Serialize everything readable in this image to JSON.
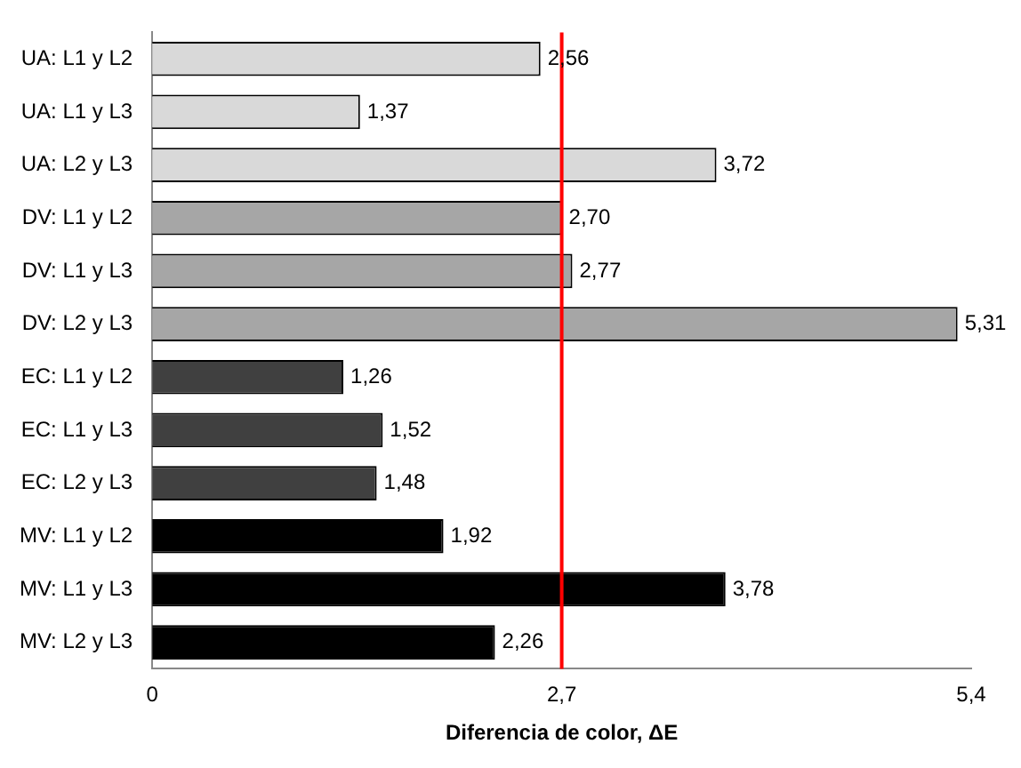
{
  "chart_data": {
    "type": "bar",
    "orientation": "horizontal",
    "xlabel": "Diferencia de color, ΔE",
    "categories": [
      "UA: L1 y L2",
      "UA: L1 y L3",
      "UA: L2 y L3",
      "DV: L1 y L2",
      "DV: L1 y L3",
      "DV: L2 y L3",
      "EC: L1 y L2",
      "EC: L1 y L3",
      "EC: L2 y L3",
      "MV: L1 y L2",
      "MV: L1 y L3",
      "MV: L2 y L3"
    ],
    "values": [
      2.56,
      1.37,
      3.72,
      2.7,
      2.77,
      5.31,
      1.26,
      1.52,
      1.48,
      1.92,
      3.78,
      2.26
    ],
    "value_labels": [
      "2,56",
      "1,37",
      "3,72",
      "2,70",
      "2,77",
      "5,31",
      "1,26",
      "1,52",
      "1,48",
      "1,92",
      "3,78",
      "2,26"
    ],
    "colors": [
      "#d9d9d9",
      "#d9d9d9",
      "#d9d9d9",
      "#a6a6a6",
      "#a6a6a6",
      "#a6a6a6",
      "#404040",
      "#404040",
      "#404040",
      "#000000",
      "#000000",
      "#000000"
    ],
    "xlim": [
      0,
      5.4
    ],
    "xticks": [
      0,
      {
        "value": 2.7,
        "label": "2,7"
      },
      {
        "value": 5.4,
        "label": "5,4"
      }
    ],
    "ref_lines": [
      {
        "axis": "x",
        "value": 2.7,
        "color": "#ff0000"
      }
    ],
    "grid": false,
    "legend": false
  }
}
